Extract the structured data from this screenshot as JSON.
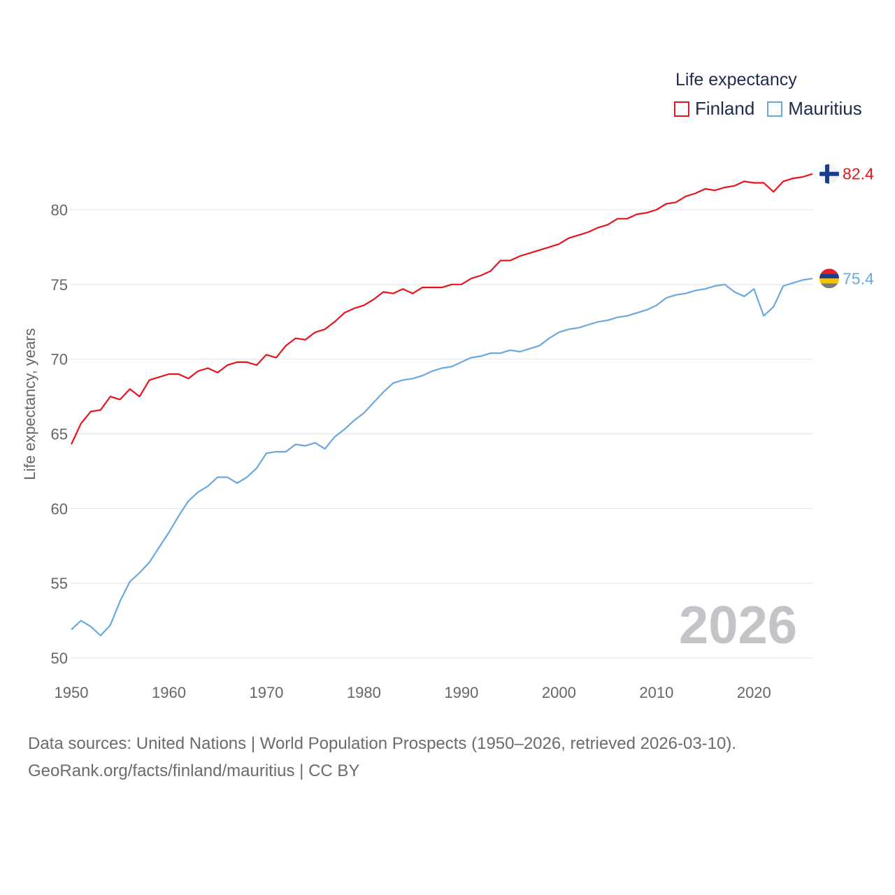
{
  "legend": {
    "title": "Life expectancy",
    "items": [
      {
        "name": "Finland",
        "color": "#e8141c"
      },
      {
        "name": "Mauritius",
        "color": "#6aa8e0"
      }
    ]
  },
  "source": {
    "line1": "Data sources: United Nations | World Population Prospects (1950–2026, retrieved 2026-03-10).",
    "line2": "GeoRank.org/facts/finland/mauritius | CC BY"
  },
  "chart_data": {
    "type": "line",
    "title": "Life expectancy",
    "xlabel": "",
    "ylabel": "Life expectancy, years",
    "xlim": [
      1950,
      2026
    ],
    "ylim": [
      50,
      84
    ],
    "x_ticks": [
      1950,
      1960,
      1970,
      1980,
      1990,
      2000,
      2010,
      2020
    ],
    "y_ticks": [
      50,
      55,
      60,
      65,
      70,
      75,
      80
    ],
    "grid": true,
    "legend_position": "top-right",
    "year_label": "2026",
    "x": [
      1950,
      1951,
      1952,
      1953,
      1954,
      1955,
      1956,
      1957,
      1958,
      1959,
      1960,
      1961,
      1962,
      1963,
      1964,
      1965,
      1966,
      1967,
      1968,
      1969,
      1970,
      1971,
      1972,
      1973,
      1974,
      1975,
      1976,
      1977,
      1978,
      1979,
      1980,
      1981,
      1982,
      1983,
      1984,
      1985,
      1986,
      1987,
      1988,
      1989,
      1990,
      1991,
      1992,
      1993,
      1994,
      1995,
      1996,
      1997,
      1998,
      1999,
      2000,
      2001,
      2002,
      2003,
      2004,
      2005,
      2006,
      2007,
      2008,
      2009,
      2010,
      2011,
      2012,
      2013,
      2014,
      2015,
      2016,
      2017,
      2018,
      2019,
      2020,
      2021,
      2022,
      2023,
      2024,
      2025,
      2026
    ],
    "series": [
      {
        "name": "Finland",
        "color": "#e8141c",
        "end_label": "82.4",
        "values": [
          64.3,
          65.7,
          66.5,
          66.6,
          67.5,
          67.3,
          68.0,
          67.5,
          68.6,
          68.8,
          69.0,
          69.0,
          68.7,
          69.2,
          69.4,
          69.1,
          69.6,
          69.8,
          69.8,
          69.6,
          70.3,
          70.1,
          70.9,
          71.4,
          71.3,
          71.8,
          72.0,
          72.5,
          73.1,
          73.4,
          73.6,
          74.0,
          74.5,
          74.4,
          74.7,
          74.4,
          74.8,
          74.8,
          74.8,
          75.0,
          75.0,
          75.4,
          75.6,
          75.9,
          76.6,
          76.6,
          76.9,
          77.1,
          77.3,
          77.5,
          77.7,
          78.1,
          78.3,
          78.5,
          78.8,
          79.0,
          79.4,
          79.4,
          79.7,
          79.8,
          80.0,
          80.4,
          80.5,
          80.9,
          81.1,
          81.4,
          81.3,
          81.5,
          81.6,
          81.9,
          81.8,
          81.8,
          81.2,
          81.9,
          82.1,
          82.2,
          82.4
        ]
      },
      {
        "name": "Mauritius",
        "color": "#6aa8e0",
        "end_label": "75.4",
        "values": [
          51.9,
          52.5,
          52.1,
          51.5,
          52.2,
          53.8,
          55.1,
          55.7,
          56.4,
          57.4,
          58.4,
          59.5,
          60.5,
          61.1,
          61.5,
          62.1,
          62.1,
          61.7,
          62.1,
          62.7,
          63.7,
          63.8,
          63.8,
          64.3,
          64.2,
          64.4,
          64.0,
          64.8,
          65.3,
          65.9,
          66.4,
          67.1,
          67.8,
          68.4,
          68.6,
          68.7,
          68.9,
          69.2,
          69.4,
          69.5,
          69.8,
          70.1,
          70.2,
          70.4,
          70.4,
          70.6,
          70.5,
          70.7,
          70.9,
          71.4,
          71.8,
          72.0,
          72.1,
          72.3,
          72.5,
          72.6,
          72.8,
          72.9,
          73.1,
          73.3,
          73.6,
          74.1,
          74.3,
          74.4,
          74.6,
          74.7,
          74.9,
          75.0,
          74.5,
          74.2,
          74.7,
          72.9,
          73.5,
          74.9,
          75.1,
          75.3,
          75.4
        ]
      }
    ]
  }
}
